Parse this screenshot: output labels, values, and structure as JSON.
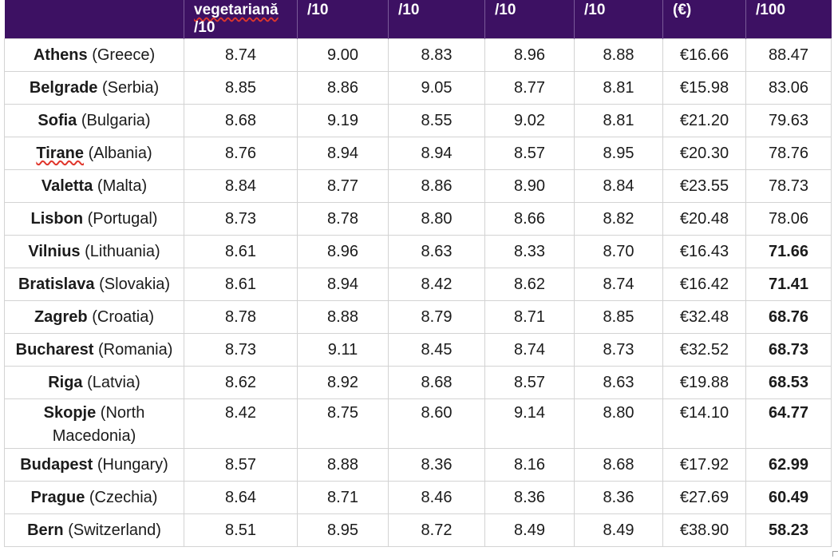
{
  "header": {
    "columns": [
      {
        "line1": "",
        "line2": ""
      },
      {
        "line1": "vegetariană",
        "line2": "/10"
      },
      {
        "line1": "/10",
        "line2": ""
      },
      {
        "line1": "/10",
        "line2": ""
      },
      {
        "line1": "/10",
        "line2": ""
      },
      {
        "line1": "/10",
        "line2": ""
      },
      {
        "line1": "(€)",
        "line2": ""
      },
      {
        "line1": "/100",
        "line2": ""
      }
    ]
  },
  "rows": [
    {
      "city": "Athens",
      "country": "(Greece)",
      "v1": "8.74",
      "v2": "9.00",
      "v3": "8.83",
      "v4": "8.96",
      "v5": "8.88",
      "price": "€16.66",
      "score": "88.47",
      "score_bold": false
    },
    {
      "city": "Belgrade",
      "country": "(Serbia)",
      "v1": "8.85",
      "v2": "8.86",
      "v3": "9.05",
      "v4": "8.77",
      "v5": "8.81",
      "price": "€15.98",
      "score": "83.06",
      "score_bold": false
    },
    {
      "city": "Sofia",
      "country": "(Bulgaria)",
      "v1": "8.68",
      "v2": "9.19",
      "v3": "8.55",
      "v4": "9.02",
      "v5": "8.81",
      "price": "€21.20",
      "score": "79.63",
      "score_bold": false
    },
    {
      "city": "Tirane",
      "country": "(Albania)",
      "v1": "8.76",
      "v2": "8.94",
      "v3": "8.94",
      "v4": "8.57",
      "v5": "8.95",
      "price": "€20.30",
      "score": "78.76",
      "score_bold": false
    },
    {
      "city": "Valetta",
      "country": "(Malta)",
      "v1": "8.84",
      "v2": "8.77",
      "v3": "8.86",
      "v4": "8.90",
      "v5": "8.84",
      "price": "€23.55",
      "score": "78.73",
      "score_bold": false
    },
    {
      "city": "Lisbon",
      "country": "(Portugal)",
      "v1": "8.73",
      "v2": "8.78",
      "v3": "8.80",
      "v4": "8.66",
      "v5": "8.82",
      "price": "€20.48",
      "score": "78.06",
      "score_bold": false
    },
    {
      "city": "Vilnius",
      "country": "(Lithuania)",
      "v1": "8.61",
      "v2": "8.96",
      "v3": "8.63",
      "v4": "8.33",
      "v5": "8.70",
      "price": "€16.43",
      "score": "71.66",
      "score_bold": true
    },
    {
      "city": "Bratislava",
      "country": "(Slovakia)",
      "v1": "8.61",
      "v2": "8.94",
      "v3": "8.42",
      "v4": "8.62",
      "v5": "8.74",
      "price": "€16.42",
      "score": "71.41",
      "score_bold": true
    },
    {
      "city": "Zagreb",
      "country": "(Croatia)",
      "v1": "8.78",
      "v2": "8.88",
      "v3": "8.79",
      "v4": "8.71",
      "v5": "8.85",
      "price": "€32.48",
      "score": "68.76",
      "score_bold": true
    },
    {
      "city": "Bucharest",
      "country": "(Romania)",
      "v1": "8.73",
      "v2": "9.11",
      "v3": "8.45",
      "v4": "8.74",
      "v5": "8.73",
      "price": "€32.52",
      "score": "68.73",
      "score_bold": true
    },
    {
      "city": "Riga",
      "country": "(Latvia)",
      "v1": "8.62",
      "v2": "8.92",
      "v3": "8.68",
      "v4": "8.57",
      "v5": "8.63",
      "price": "€19.88",
      "score": "68.53",
      "score_bold": true
    },
    {
      "city": "Skopje",
      "country": "(North Macedonia)",
      "v1": "8.42",
      "v2": "8.75",
      "v3": "8.60",
      "v4": "9.14",
      "v5": "8.80",
      "price": "€14.10",
      "score": "64.77",
      "score_bold": true
    },
    {
      "city": "Budapest",
      "country": "(Hungary)",
      "v1": "8.57",
      "v2": "8.88",
      "v3": "8.36",
      "v4": "8.16",
      "v5": "8.68",
      "price": "€17.92",
      "score": "62.99",
      "score_bold": true
    },
    {
      "city": "Prague",
      "country": "(Czechia)",
      "v1": "8.64",
      "v2": "8.71",
      "v3": "8.46",
      "v4": "8.36",
      "v5": "8.36",
      "price": "€27.69",
      "score": "60.49",
      "score_bold": true
    },
    {
      "city": "Bern",
      "country": "(Switzerland)",
      "v1": "8.51",
      "v2": "8.95",
      "v3": "8.72",
      "v4": "8.49",
      "v5": "8.49",
      "price": "€38.90",
      "score": "58.23",
      "score_bold": true
    }
  ],
  "style": {
    "header_bg": "#3d1163",
    "header_text": "#ffffff",
    "grid_line": "#d3d3d3",
    "spellcheck_underline": "#e0362c"
  }
}
